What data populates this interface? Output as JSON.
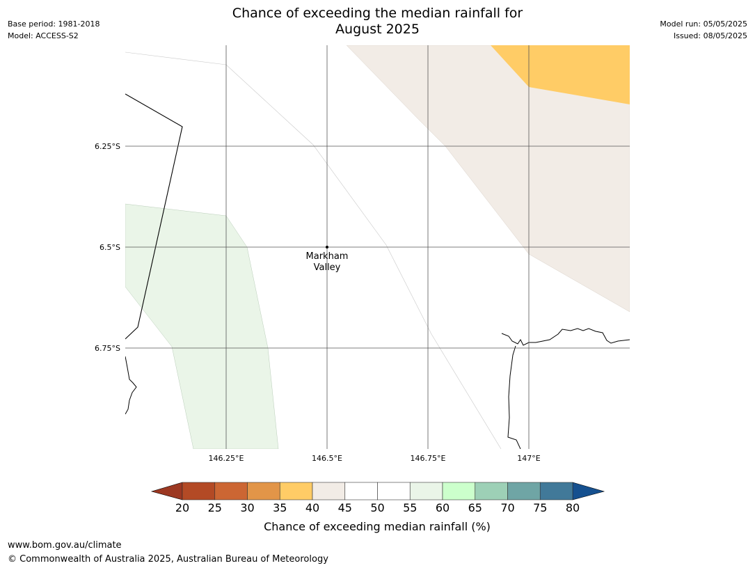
{
  "header": {
    "title_line1": "Chance of exceeding the median rainfall for",
    "title_line2": "August 2025",
    "base_period": "Base period: 1981-2018",
    "model": "Model: ACCESS-S2",
    "model_run": "Model run: 05/05/2025",
    "issued": "Issued: 08/05/2025"
  },
  "map": {
    "lon_ticks": [
      "146.25°E",
      "146.5°E",
      "146.75°E",
      "147°E"
    ],
    "lat_ticks": [
      "6.25°S",
      "6.5°S",
      "6.75°S"
    ],
    "place": {
      "name_line1": "Markham",
      "name_line2": "Valley",
      "lon": 146.5,
      "lat": -6.5
    },
    "colors": {
      "band_35_40": "#ffcc66",
      "band_40_45": "#f2ece6",
      "band_55_60": "#eaf5e8",
      "coastline": "#000000",
      "grid": "#555555"
    }
  },
  "colorbar": {
    "title": "Chance of exceeding median rainfall (%)",
    "ticks": [
      "20",
      "25",
      "30",
      "35",
      "40",
      "45",
      "50",
      "55",
      "60",
      "65",
      "70",
      "75",
      "80"
    ],
    "under_color": "#9c3822",
    "over_color": "#15508f",
    "colors": [
      "#b34a25",
      "#cc6633",
      "#e29548",
      "#ffcc66",
      "#f2ece6",
      "#ffffff",
      "#ffffff",
      "#eaf5e8",
      "#ccffcc",
      "#9dd0b6",
      "#6fa5a5",
      "#417999"
    ]
  },
  "footer": {
    "url": "www.bom.gov.au/climate",
    "copyright": "© Commonwealth of Australia 2025, Australian Bureau of Meteorology"
  }
}
